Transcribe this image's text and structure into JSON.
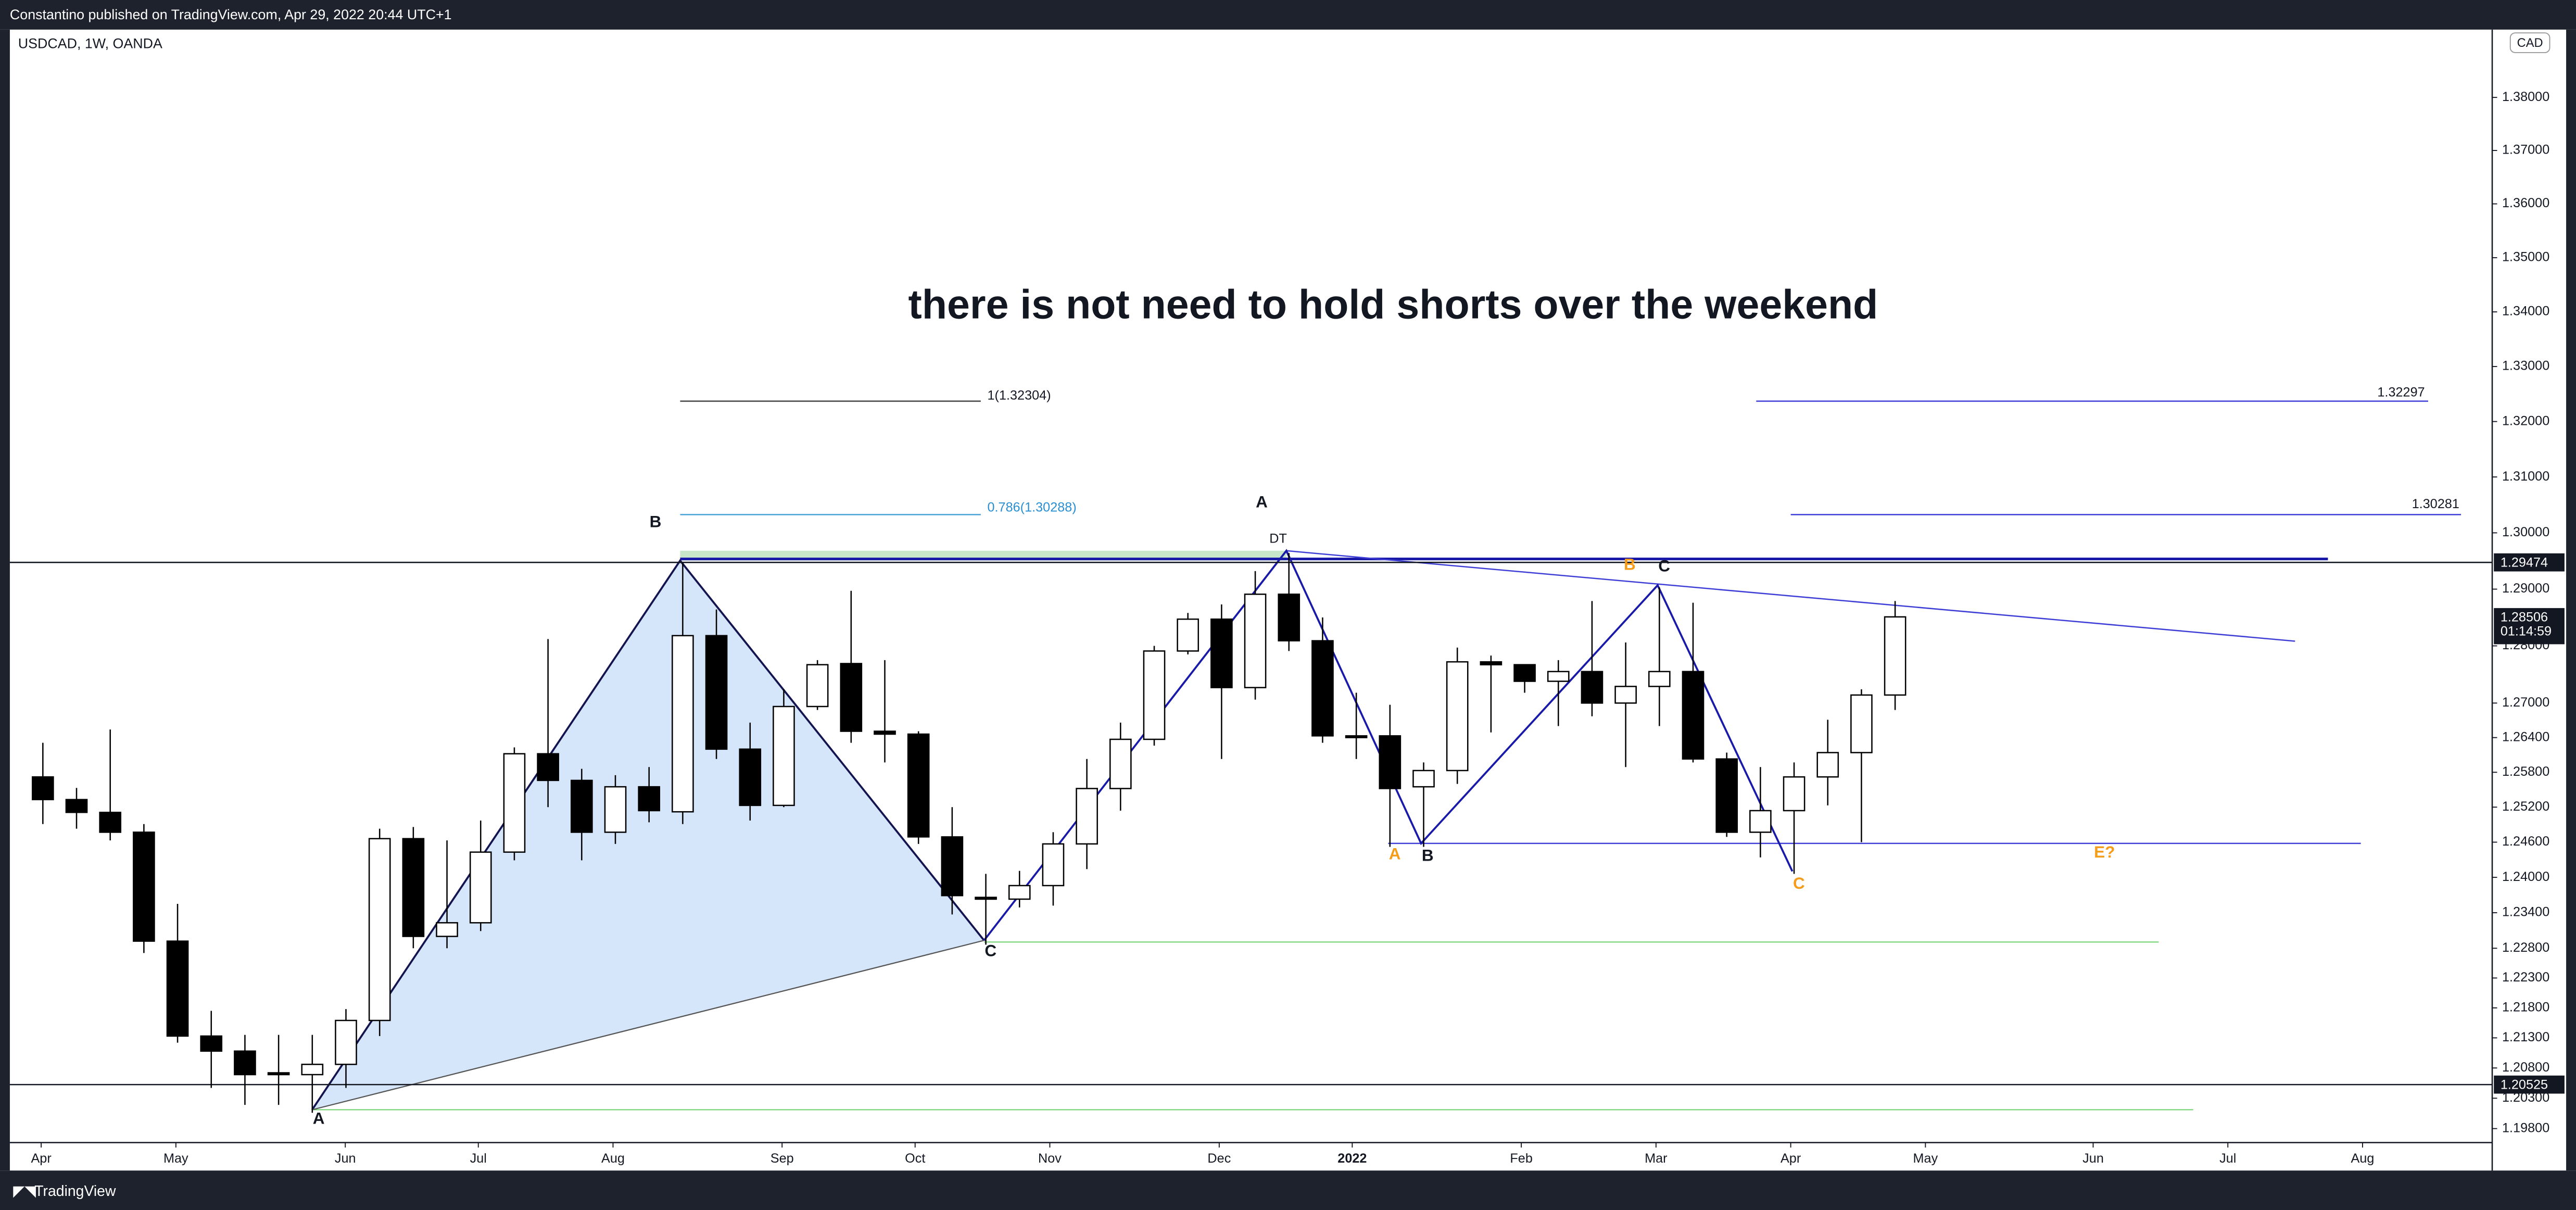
{
  "header": {
    "publisher": "Constantino published on TradingView.com, Apr 29, 2022 20:44 UTC+1"
  },
  "footer": {
    "brand": "TradingView"
  },
  "chart_data": {
    "type": "candlestick",
    "title": "USDCAD, 1W, OANDA",
    "currency": "CAD",
    "log_scale": true,
    "up_color": "#ffffff",
    "down_color": "#000000",
    "categories": [
      null,
      null,
      null,
      null,
      null,
      null,
      null,
      null,
      null,
      null,
      null,
      null,
      null,
      null,
      null,
      null,
      null,
      null,
      null,
      null,
      null,
      null,
      null,
      null,
      null,
      null,
      null,
      null,
      null,
      null,
      null,
      null,
      null,
      null,
      null,
      null,
      null,
      null,
      null,
      null,
      null,
      null,
      null,
      null,
      null,
      null,
      null,
      null,
      null,
      null,
      null,
      null,
      null,
      null,
      null,
      null
    ],
    "open": [
      1.2572,
      1.2533,
      1.2511,
      1.2477,
      1.2292,
      1.2133,
      1.2108,
      1.2072,
      1.2069,
      1.2086,
      1.2159,
      1.2466,
      1.23,
      1.2323,
      1.2443,
      1.2612,
      1.2566,
      1.2477,
      1.2555,
      1.2512,
      1.2818,
      1.262,
      1.2523,
      1.2694,
      1.2769,
      1.2651,
      1.2646,
      1.2469,
      1.2366,
      1.2363,
      1.2386,
      1.2457,
      1.2552,
      1.2637,
      1.2791,
      1.2847,
      1.2727,
      1.2891,
      1.2809,
      1.2643,
      1.2643,
      1.2555,
      1.2583,
      1.2772,
      1.2767,
      1.2738,
      1.2755,
      1.27,
      1.2729,
      1.2755,
      1.2603,
      1.2477,
      1.2514,
      1.2572,
      1.2614,
      1.2714
    ],
    "high": [
      1.2631,
      1.2553,
      1.2654,
      1.2491,
      1.2355,
      1.2175,
      1.2135,
      1.2135,
      1.2135,
      1.2178,
      1.2483,
      1.2486,
      1.2463,
      1.2497,
      1.2623,
      1.2812,
      1.2586,
      1.2575,
      1.2589,
      1.2946,
      1.2864,
      1.2666,
      1.2724,
      1.2775,
      1.2897,
      1.2775,
      1.2651,
      1.252,
      1.2406,
      1.2411,
      1.2477,
      1.2603,
      1.2666,
      1.28,
      1.2858,
      1.2873,
      1.2932,
      1.2964,
      1.285,
      1.2718,
      1.2697,
      1.2597,
      1.2797,
      1.2783,
      1.2767,
      1.2775,
      1.2879,
      1.2806,
      1.2903,
      1.2876,
      1.2614,
      1.2589,
      1.2597,
      1.2671,
      1.2724,
      1.2879
    ],
    "low": [
      1.2491,
      1.2483,
      1.2463,
      1.2272,
      1.2122,
      1.2047,
      1.2019,
      1.2019,
      1.2006,
      1.2047,
      1.2133,
      1.228,
      1.228,
      1.2309,
      1.2429,
      1.252,
      1.2429,
      1.2457,
      1.2494,
      1.2491,
      1.2603,
      1.2497,
      1.252,
      1.2688,
      1.2631,
      1.2597,
      1.2457,
      1.2337,
      1.2286,
      1.2349,
      1.2352,
      1.2414,
      1.2514,
      1.2626,
      1.2785,
      1.2603,
      1.2706,
      1.2791,
      1.2631,
      1.2603,
      1.2452,
      1.2452,
      1.256,
      1.2649,
      1.2718,
      1.266,
      1.2677,
      1.2589,
      1.266,
      1.2597,
      1.2469,
      1.2434,
      1.2406,
      1.2523,
      1.246,
      1.2688
    ],
    "close": [
      1.2533,
      1.2511,
      1.2477,
      1.2292,
      1.2133,
      1.2108,
      1.2069,
      1.2069,
      1.2086,
      1.2159,
      1.2466,
      1.23,
      1.2323,
      1.2443,
      1.2612,
      1.2566,
      1.2477,
      1.2555,
      1.2514,
      1.2818,
      1.262,
      1.2523,
      1.2694,
      1.2767,
      1.2651,
      1.2646,
      1.2469,
      1.2369,
      1.2363,
      1.2386,
      1.2457,
      1.2552,
      1.2637,
      1.2791,
      1.2847,
      1.2727,
      1.2891,
      1.2809,
      1.2643,
      1.264,
      1.2552,
      1.2583,
      1.2772,
      1.2767,
      1.2738,
      1.2755,
      1.27,
      1.2729,
      1.2755,
      1.2603,
      1.2477,
      1.2514,
      1.2572,
      1.2614,
      1.2714,
      1.2851
    ],
    "xlim": [
      -0.98,
      72.73
    ],
    "xticks": [
      {
        "value": -0.05,
        "label": "Apr"
      },
      {
        "value": 3.95,
        "label": "May"
      },
      {
        "value": 8.98,
        "label": "Jun"
      },
      {
        "value": 12.93,
        "label": "Jul"
      },
      {
        "value": 16.93,
        "label": "Aug"
      },
      {
        "value": 21.95,
        "label": "Sep"
      },
      {
        "value": 25.9,
        "label": "Oct"
      },
      {
        "value": 29.9,
        "label": "Nov"
      },
      {
        "value": 34.93,
        "label": "Dec"
      },
      {
        "value": 38.88,
        "label": "2022"
      },
      {
        "value": 43.9,
        "label": "Feb"
      },
      {
        "value": 47.9,
        "label": "Mar"
      },
      {
        "value": 51.9,
        "label": "Apr"
      },
      {
        "value": 55.9,
        "label": "May"
      },
      {
        "value": 60.88,
        "label": "Jun"
      },
      {
        "value": 64.88,
        "label": "Jul"
      },
      {
        "value": 68.88,
        "label": "Aug"
      }
    ],
    "ylim": [
      1.1957,
      1.3929
    ],
    "yticks": [
      {
        "value": 1.38,
        "label": "1.38000"
      },
      {
        "value": 1.37,
        "label": "1.37000"
      },
      {
        "value": 1.36,
        "label": "1.36000"
      },
      {
        "value": 1.35,
        "label": "1.35000"
      },
      {
        "value": 1.34,
        "label": "1.34000"
      },
      {
        "value": 1.33,
        "label": "1.33000"
      },
      {
        "value": 1.32,
        "label": "1.32000"
      },
      {
        "value": 1.31,
        "label": "1.31000"
      },
      {
        "value": 1.3,
        "label": "1.30000"
      },
      {
        "value": 1.29,
        "label": "1.29000"
      },
      {
        "value": 1.28,
        "label": "1.28000"
      },
      {
        "value": 1.27,
        "label": "1.27000"
      },
      {
        "value": 1.264,
        "label": "1.26400"
      },
      {
        "value": 1.258,
        "label": "1.25800"
      },
      {
        "value": 1.252,
        "label": "1.25200"
      },
      {
        "value": 1.246,
        "label": "1.24600"
      },
      {
        "value": 1.24,
        "label": "1.24000"
      },
      {
        "value": 1.234,
        "label": "1.23400"
      },
      {
        "value": 1.228,
        "label": "1.22800"
      },
      {
        "value": 1.223,
        "label": "1.22300"
      },
      {
        "value": 1.218,
        "label": "1.21800"
      },
      {
        "value": 1.213,
        "label": "1.21300"
      },
      {
        "value": 1.208,
        "label": "1.20800"
      },
      {
        "value": 1.203,
        "label": "1.20300"
      },
      {
        "value": 1.198,
        "label": "1.19800"
      }
    ],
    "horizontal_lines": [
      1.29474,
      1.20525
    ],
    "last_price": 1.28506,
    "countdown": "01:14:59",
    "annotations": [
      "there is not need to hold shorts over the weekend",
      "B",
      "A",
      "C",
      "A",
      "DT",
      "B",
      "C",
      "A",
      "B",
      "C",
      "E?",
      "1(1.32304)",
      "0.786(1.30288)",
      "1.32297",
      "1.30281"
    ]
  }
}
